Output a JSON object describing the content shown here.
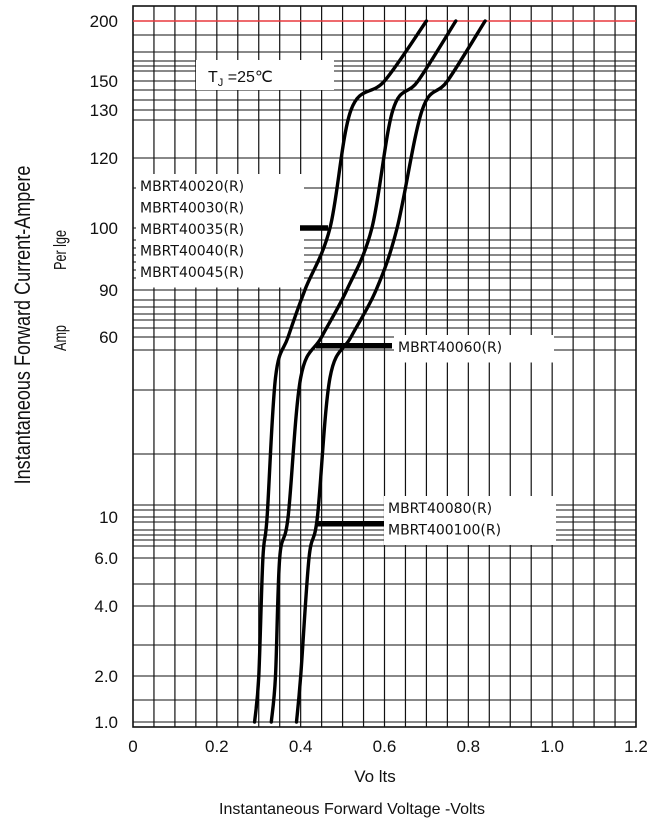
{
  "chart_data": {
    "type": "line",
    "title": "",
    "annotation": {
      "prefix": "T",
      "subscript": "J",
      "text": " =25℃"
    },
    "xlabel_upper": "Vo lts",
    "xlabel": "Instantaneous  Forward Voltage -Volts",
    "ylabel": "Instantaneous Forward  Current-Ampere",
    "ylabel_sub1": "Per lge",
    "ylabel_sub2": "Amp",
    "xlim": [
      0,
      1.2
    ],
    "x_ticks": [
      {
        "v": 0,
        "label": "0"
      },
      {
        "v": 0.2,
        "label": "0.2"
      },
      {
        "v": 0.4,
        "label": "0.4"
      },
      {
        "v": 0.6,
        "label": "0.6"
      },
      {
        "v": 0.8,
        "label": "0.8"
      },
      {
        "v": 1.0,
        "label": "1.0"
      },
      {
        "v": 1.2,
        "label": "1.2"
      }
    ],
    "y_ticks": [
      "200",
      "150",
      "130",
      "120",
      "100",
      "90",
      "60",
      "10",
      "6.0",
      "4.0",
      "2.0",
      "1.0"
    ],
    "reference_line": {
      "y": "200",
      "color": "#e8383d"
    },
    "series": [
      {
        "labels": [
          "MBRT40020(R)",
          "MBRT40030(R)",
          "MBRT40035(R)",
          "MBRT40040(R)",
          "MBRT40045(R)"
        ],
        "points": [
          [
            0.29,
            1.0
          ],
          [
            0.3,
            2.0
          ],
          [
            0.31,
            6.0
          ],
          [
            0.32,
            10
          ],
          [
            0.34,
            40
          ],
          [
            0.37,
            60
          ],
          [
            0.41,
            90
          ],
          [
            0.47,
            100
          ],
          [
            0.52,
            130
          ],
          [
            0.6,
            150
          ],
          [
            0.7,
            200
          ]
        ]
      },
      {
        "labels": [
          "MBRT40060(R)"
        ],
        "points": [
          [
            0.33,
            1.0
          ],
          [
            0.34,
            2.0
          ],
          [
            0.35,
            6.0
          ],
          [
            0.37,
            10
          ],
          [
            0.4,
            40
          ],
          [
            0.45,
            60
          ],
          [
            0.51,
            90
          ],
          [
            0.57,
            100
          ],
          [
            0.62,
            130
          ],
          [
            0.68,
            150
          ],
          [
            0.77,
            200
          ]
        ]
      },
      {
        "labels": [
          "MBRT40080(R)",
          "MBRT400100(R)"
        ],
        "points": [
          [
            0.39,
            1.0
          ],
          [
            0.4,
            2.0
          ],
          [
            0.42,
            6.0
          ],
          [
            0.44,
            10
          ],
          [
            0.47,
            40
          ],
          [
            0.52,
            60
          ],
          [
            0.58,
            90
          ],
          [
            0.63,
            100
          ],
          [
            0.69,
            130
          ],
          [
            0.75,
            150
          ],
          [
            0.84,
            200
          ]
        ]
      }
    ]
  }
}
